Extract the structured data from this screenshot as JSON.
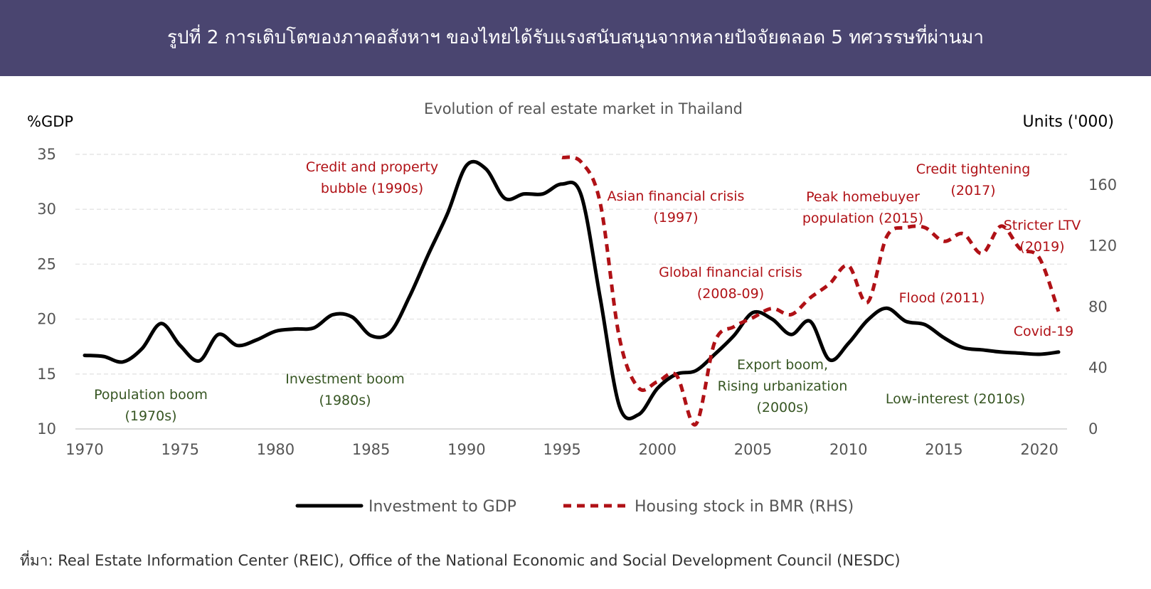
{
  "header": {
    "title": "รูปที่ 2 การเติบโตของภาคอสังหาฯ ของไทยได้รับแรงสนับสนุนจากหลายปัจจัยตลอด 5 ทศวรรษที่ผ่านมา"
  },
  "footer": {
    "source": "ที่มา: Real Estate Information Center (REIC), Office of the National Economic and Social Development Council (NESDC)"
  },
  "colors": {
    "banner": "#4a4570",
    "investment_line": "#000000",
    "housing_line": "#b01116",
    "annotation_red": "#b01116",
    "annotation_green": "#375623",
    "grid": "#e6e6e6"
  },
  "chart_data": {
    "type": "line",
    "title": "Evolution of real estate market in Thailand",
    "ylabel_left": "%GDP",
    "ylabel_right": "Units ('000)",
    "xlim": [
      1970,
      2021
    ],
    "ylim_left": [
      10,
      35
    ],
    "ylim_right": [
      0,
      180
    ],
    "xticks": [
      1970,
      1975,
      1980,
      1985,
      1990,
      1995,
      2000,
      2005,
      2010,
      2015,
      2020
    ],
    "yticks_left": [
      10,
      15,
      20,
      25,
      30,
      35
    ],
    "yticks_right": [
      0,
      40,
      80,
      120,
      160
    ],
    "grid": "horizontal dashed",
    "legend_position": "bottom",
    "series": [
      {
        "name": "Investment to GDP",
        "axis": "left",
        "style": "solid",
        "points": [
          [
            1970,
            16.7
          ],
          [
            1971,
            16.6
          ],
          [
            1972,
            16.1
          ],
          [
            1973,
            17.3
          ],
          [
            1974,
            19.6
          ],
          [
            1975,
            17.6
          ],
          [
            1976,
            16.2
          ],
          [
            1977,
            18.6
          ],
          [
            1978,
            17.6
          ],
          [
            1979,
            18.1
          ],
          [
            1980,
            18.9
          ],
          [
            1981,
            19.1
          ],
          [
            1982,
            19.2
          ],
          [
            1983,
            20.4
          ],
          [
            1984,
            20.2
          ],
          [
            1985,
            18.5
          ],
          [
            1986,
            18.8
          ],
          [
            1987,
            22.0
          ],
          [
            1988,
            25.9
          ],
          [
            1989,
            29.6
          ],
          [
            1990,
            34.0
          ],
          [
            1991,
            33.7
          ],
          [
            1992,
            31.0
          ],
          [
            1993,
            31.4
          ],
          [
            1994,
            31.4
          ],
          [
            1995,
            32.3
          ],
          [
            1996,
            31.3
          ],
          [
            1997,
            21.9
          ],
          [
            1998,
            12.1
          ],
          [
            1999,
            11.3
          ],
          [
            2000,
            13.7
          ],
          [
            2001,
            15.0
          ],
          [
            2002,
            15.3
          ],
          [
            2003,
            16.8
          ],
          [
            2004,
            18.5
          ],
          [
            2005,
            20.6
          ],
          [
            2006,
            20.0
          ],
          [
            2007,
            18.6
          ],
          [
            2008,
            19.8
          ],
          [
            2009,
            16.3
          ],
          [
            2010,
            17.8
          ],
          [
            2011,
            19.9
          ],
          [
            2012,
            21.0
          ],
          [
            2013,
            19.8
          ],
          [
            2014,
            19.5
          ],
          [
            2015,
            18.3
          ],
          [
            2016,
            17.4
          ],
          [
            2017,
            17.2
          ],
          [
            2018,
            17.0
          ],
          [
            2019,
            16.9
          ],
          [
            2020,
            16.8
          ],
          [
            2021,
            17.0
          ]
        ]
      },
      {
        "name": "Housing stock in BMR (RHS)",
        "axis": "right",
        "style": "dashed",
        "points": [
          [
            1995,
            178
          ],
          [
            1996,
            175
          ],
          [
            1997,
            148
          ],
          [
            1998,
            60
          ],
          [
            1999,
            27
          ],
          [
            2000,
            31
          ],
          [
            2001,
            35
          ],
          [
            2002,
            3
          ],
          [
            2003,
            57
          ],
          [
            2004,
            67
          ],
          [
            2005,
            73
          ],
          [
            2006,
            79
          ],
          [
            2007,
            75
          ],
          [
            2008,
            86
          ],
          [
            2009,
            95
          ],
          [
            2010,
            107
          ],
          [
            2011,
            83
          ],
          [
            2012,
            126
          ],
          [
            2013,
            132
          ],
          [
            2014,
            132
          ],
          [
            2015,
            123
          ],
          [
            2016,
            128
          ],
          [
            2017,
            115
          ],
          [
            2018,
            133
          ],
          [
            2019,
            118
          ],
          [
            2020,
            112
          ],
          [
            2021,
            77
          ]
        ]
      }
    ],
    "annotations": [
      {
        "text": [
          "Population boom",
          "(1970s)"
        ],
        "color": "green"
      },
      {
        "text": [
          "Investment boom",
          "(1980s)"
        ],
        "color": "green"
      },
      {
        "text": [
          "Credit and property",
          "bubble (1990s)"
        ],
        "color": "red"
      },
      {
        "text": [
          "Asian financial crisis",
          "(1997)"
        ],
        "color": "red"
      },
      {
        "text": [
          "Global financial crisis",
          "(2008-09)"
        ],
        "color": "red"
      },
      {
        "text": [
          "Export boom,",
          "Rising urbanization",
          "(2000s)"
        ],
        "color": "green"
      },
      {
        "text": [
          "Peak homebuyer",
          "population (2015)"
        ],
        "color": "red"
      },
      {
        "text": [
          "Credit tightening",
          "(2017)"
        ],
        "color": "red"
      },
      {
        "text": [
          "Stricter LTV",
          "(2019)"
        ],
        "color": "red"
      },
      {
        "text": [
          "Flood (2011)"
        ],
        "color": "red"
      },
      {
        "text": [
          "Covid-19"
        ],
        "color": "red"
      },
      {
        "text": [
          "Low-interest (2010s)"
        ],
        "color": "green"
      }
    ]
  }
}
